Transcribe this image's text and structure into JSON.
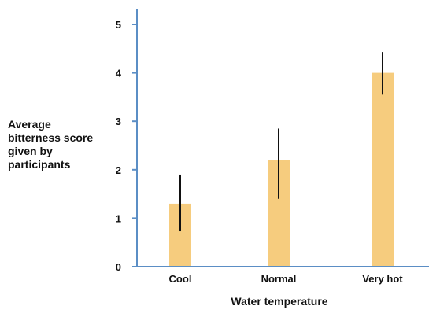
{
  "chart_data": {
    "type": "bar",
    "categories": [
      "Cool",
      "Normal",
      "Very hot"
    ],
    "values": [
      1.3,
      2.2,
      4.0
    ],
    "error_low": [
      0.73,
      1.4,
      3.55
    ],
    "error_high": [
      1.9,
      2.85,
      4.43
    ],
    "ylabel_lines": [
      "Average",
      "bitterness score",
      "given by",
      "participants"
    ],
    "xlabel": "Water temperature",
    "ylim": [
      0,
      5
    ],
    "yticks": [
      0,
      1,
      2,
      3,
      4,
      5
    ],
    "grid": false,
    "colors": {
      "bar": "#f6cc7e",
      "axis": "#5b8ec5",
      "error_bar": "#111111"
    }
  }
}
